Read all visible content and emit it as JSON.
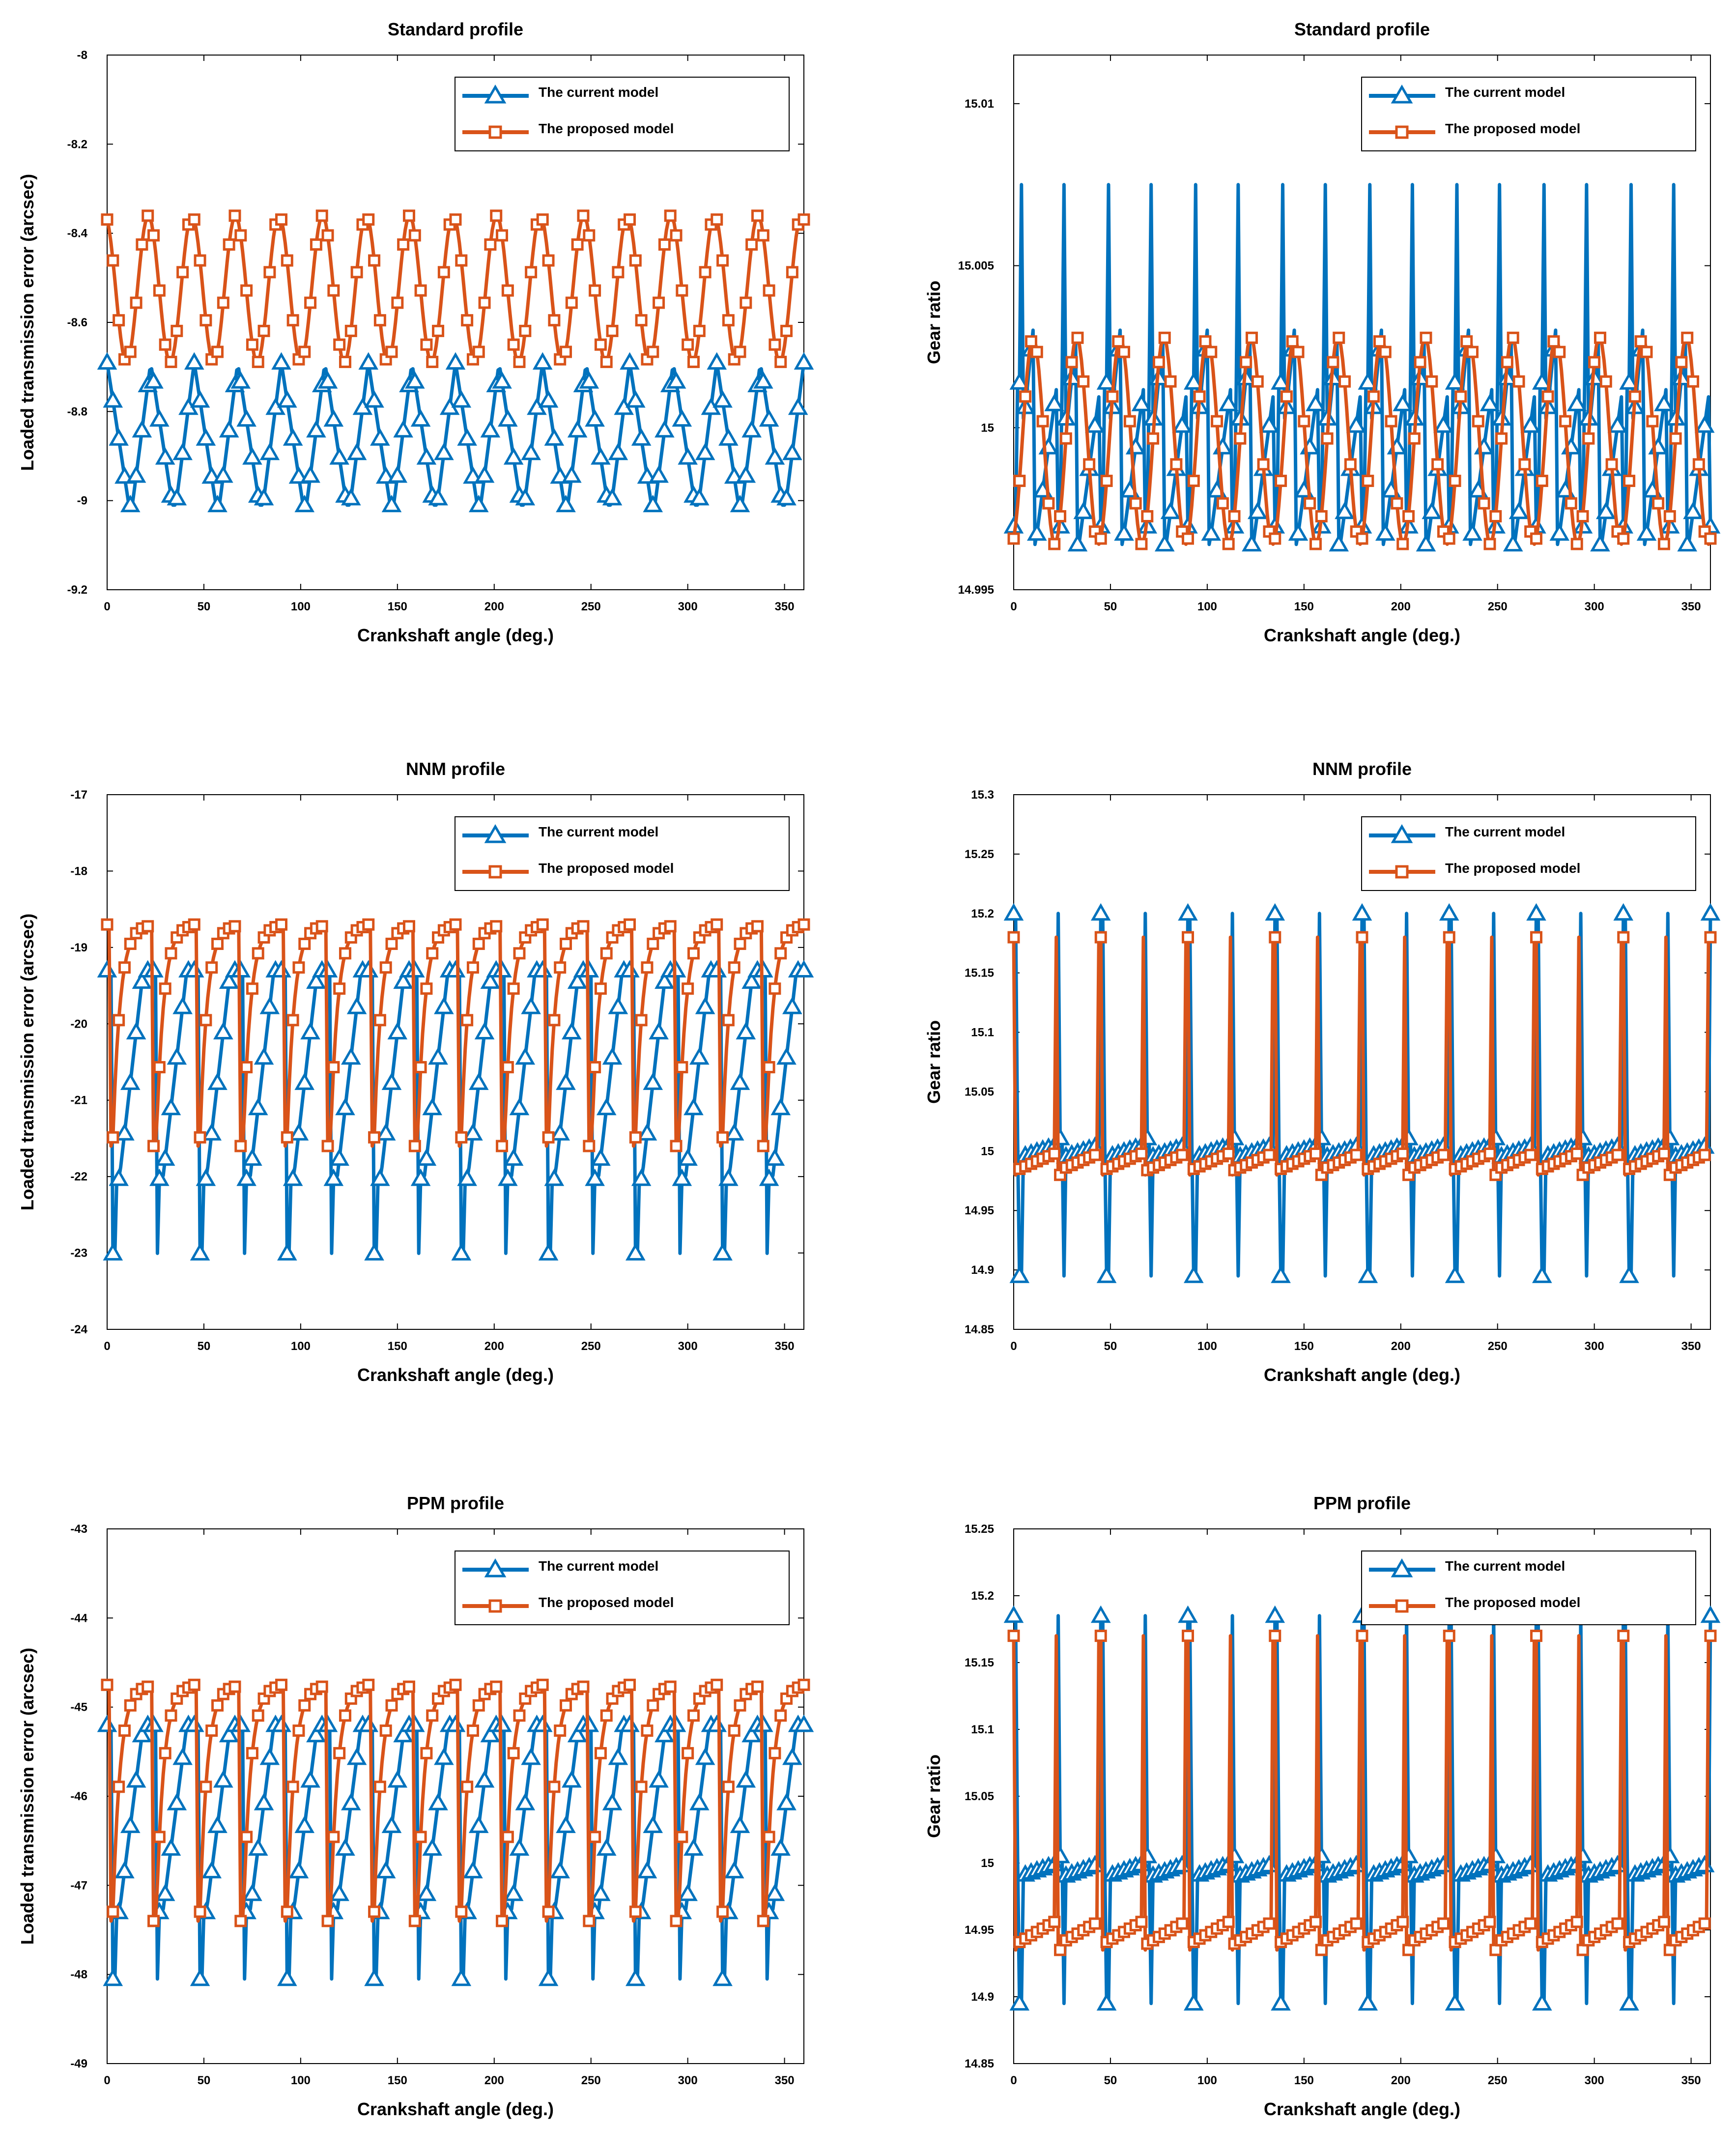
{
  "legend": {
    "current": "The current model",
    "proposed": "The proposed model"
  },
  "colors": {
    "current": "#0072BD",
    "proposed": "#D95319"
  },
  "chart_data": [
    {
      "type": "line",
      "title": "Standard profile",
      "xlabel": "Crankshaft angle (deg.)",
      "ylabel": "Loaded transmission error (arcsec)",
      "xlim": [
        0,
        360
      ],
      "ylim": [
        -9.2,
        -8
      ],
      "xticks": [
        0,
        50,
        100,
        150,
        200,
        250,
        300,
        350
      ],
      "yticks": [
        -9.2,
        -9,
        -8.8,
        -8.6,
        -8.4,
        -8.2,
        -8
      ],
      "ytick_labels": [
        "-9.2",
        "-9",
        "-8.8",
        "-8.6",
        "-8.4",
        "-8.2",
        "-8"
      ],
      "legend_position": "top-right",
      "series": [
        {
          "name": "The current model",
          "kind": "current",
          "period": 22.5,
          "low": -9.01,
          "high": -8.69,
          "shape": "sawtooth"
        },
        {
          "name": "The proposed model",
          "kind": "proposed",
          "period": 22.5,
          "low": -8.69,
          "high": -8.36,
          "shape": "cosine"
        }
      ]
    },
    {
      "type": "line",
      "title": "Standard profile",
      "xlabel": "Crankshaft angle (deg.)",
      "ylabel": "Gear ratio",
      "xlim": [
        0,
        360
      ],
      "ylim": [
        14.995,
        15.0115
      ],
      "xticks": [
        0,
        50,
        100,
        150,
        200,
        250,
        300,
        350
      ],
      "yticks": [
        14.995,
        15,
        15.005,
        15.01
      ],
      "ytick_labels": [
        "14.995",
        "15",
        "15.005",
        "15.01"
      ],
      "legend_position": "top-right",
      "series": [
        {
          "name": "The current model",
          "kind": "current",
          "period": 22.5,
          "low": 14.9964,
          "high": 15.0075,
          "shape": "ratio-std-current"
        },
        {
          "name": "The proposed model",
          "kind": "proposed",
          "period": 22.5,
          "low": 14.9964,
          "high": 15.0028,
          "shape": "ratio-std-proposed"
        }
      ]
    },
    {
      "type": "line",
      "title": "NNM profile",
      "xlabel": "Crankshaft angle (deg.)",
      "ylabel": "Loaded transmission error (arcsec)",
      "xlim": [
        0,
        360
      ],
      "ylim": [
        -24,
        -17
      ],
      "xticks": [
        0,
        50,
        100,
        150,
        200,
        250,
        300,
        350
      ],
      "yticks": [
        -24,
        -23,
        -22,
        -21,
        -20,
        -19,
        -18,
        -17
      ],
      "ytick_labels": [
        "-24",
        "-23",
        "-22",
        "-21",
        "-20",
        "-19",
        "-18",
        "-17"
      ],
      "legend_position": "top-right",
      "series": [
        {
          "name": "The current model",
          "kind": "current",
          "period": 22.5,
          "low": -23.2,
          "high": -19.3,
          "shape": "recovery-current"
        },
        {
          "name": "The proposed model",
          "kind": "proposed",
          "period": 22.5,
          "low": -21.6,
          "high": -18.7,
          "shape": "recovery-proposed"
        }
      ]
    },
    {
      "type": "line",
      "title": "NNM profile",
      "xlabel": "Crankshaft angle (deg.)",
      "ylabel": "Gear ratio",
      "xlim": [
        0,
        360
      ],
      "ylim": [
        14.85,
        15.3
      ],
      "xticks": [
        0,
        50,
        100,
        150,
        200,
        250,
        300,
        350
      ],
      "yticks": [
        14.85,
        14.9,
        14.95,
        15,
        15.05,
        15.1,
        15.15,
        15.2,
        15.25,
        15.3
      ],
      "ytick_labels": [
        "14.85",
        "14.9",
        "14.95",
        "15",
        "15.05",
        "15.1",
        "15.15",
        "15.2",
        "15.25",
        "15.3"
      ],
      "legend_position": "top-right",
      "series": [
        {
          "name": "The current model",
          "kind": "current",
          "period": 22.5,
          "low": 14.895,
          "high": 15.2,
          "shape": "spike-current"
        },
        {
          "name": "The proposed model",
          "kind": "proposed",
          "period": 22.5,
          "low": 14.98,
          "high": 15.18,
          "shape": "spike-proposed"
        }
      ]
    },
    {
      "type": "line",
      "title": "PPM profile",
      "xlabel": "Crankshaft angle (deg.)",
      "ylabel": "Loaded transmission error (arcsec)",
      "xlim": [
        0,
        360
      ],
      "ylim": [
        -49,
        -43
      ],
      "xticks": [
        0,
        50,
        100,
        150,
        200,
        250,
        300,
        350
      ],
      "yticks": [
        -49,
        -48,
        -47,
        -46,
        -45,
        -44,
        -43
      ],
      "ytick_labels": [
        "-49",
        "-48",
        "-47",
        "-46",
        "-45",
        "-44",
        "-43"
      ],
      "legend_position": "top-right",
      "series": [
        {
          "name": "The current model",
          "kind": "current",
          "period": 22.5,
          "low": -48.2,
          "high": -45.2,
          "shape": "recovery-current"
        },
        {
          "name": "The proposed model",
          "kind": "proposed",
          "period": 22.5,
          "low": -47.4,
          "high": -44.75,
          "shape": "recovery-proposed"
        }
      ]
    },
    {
      "type": "line",
      "title": "PPM profile",
      "xlabel": "Crankshaft angle (deg.)",
      "ylabel": "Gear ratio",
      "xlim": [
        0,
        360
      ],
      "ylim": [
        14.85,
        15.25
      ],
      "xticks": [
        0,
        50,
        100,
        150,
        200,
        250,
        300,
        350
      ],
      "yticks": [
        14.85,
        14.9,
        14.95,
        15,
        15.05,
        15.1,
        15.15,
        15.2,
        15.25
      ],
      "ytick_labels": [
        "14.85",
        "14.9",
        "14.95",
        "15",
        "15.05",
        "15.1",
        "15.15",
        "15.2",
        "15.25"
      ],
      "legend_position": "top-right",
      "series": [
        {
          "name": "The current model",
          "kind": "current",
          "period": 22.5,
          "low": 14.895,
          "high": 15.185,
          "shape": "spike-current"
        },
        {
          "name": "The proposed model",
          "kind": "proposed",
          "period": 22.5,
          "low": 14.935,
          "high": 15.17,
          "shape": "spike-proposed"
        }
      ]
    }
  ]
}
